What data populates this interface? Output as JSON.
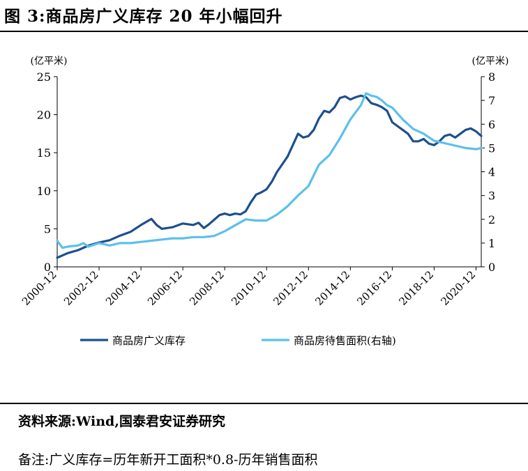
{
  "figure": {
    "title": "图 3:商品房广义库存 20 年小幅回升",
    "source": "资料来源:Wind,国泰君安证券研究",
    "note": "备注:广义库存=历年新开工面积*0.8-历年销售面积"
  },
  "chart_data": {
    "type": "line",
    "left_axis": {
      "unit": "(亿平米)",
      "ylim": [
        0,
        25
      ],
      "ticks": [
        "0",
        "5",
        "10",
        "15",
        "20",
        "25"
      ]
    },
    "right_axis": {
      "unit": "(亿平米)",
      "ylim": [
        0,
        8
      ],
      "ticks": [
        "0",
        "1",
        "2",
        "3",
        "4",
        "5",
        "6",
        "7",
        "8"
      ]
    },
    "x_range": [
      "2000-12",
      "2021-03"
    ],
    "x_tick_labels": [
      "2000-12",
      "2002-12",
      "2004-12",
      "2006-12",
      "2008-12",
      "2010-12",
      "2012-12",
      "2014-12",
      "2016-12",
      "2018-12",
      "2020-12"
    ],
    "grid": false,
    "legend_position": "bottom",
    "series": [
      {
        "name": "商品房广义库存",
        "axis": "left",
        "color": "#1c4f8f",
        "points": [
          [
            "2000-12",
            1.2
          ],
          [
            "2001-06",
            1.8
          ],
          [
            "2001-12",
            2.2
          ],
          [
            "2002-06",
            2.8
          ],
          [
            "2002-12",
            3.2
          ],
          [
            "2003-06",
            3.5
          ],
          [
            "2003-12",
            4.1
          ],
          [
            "2004-06",
            4.6
          ],
          [
            "2004-12",
            5.5
          ],
          [
            "2005-06",
            6.3
          ],
          [
            "2005-09",
            5.5
          ],
          [
            "2005-12",
            5.0
          ],
          [
            "2006-06",
            5.2
          ],
          [
            "2006-12",
            5.7
          ],
          [
            "2007-06",
            5.5
          ],
          [
            "2007-09",
            5.8
          ],
          [
            "2007-12",
            5.1
          ],
          [
            "2008-03",
            5.6
          ],
          [
            "2008-06",
            6.2
          ],
          [
            "2008-09",
            6.8
          ],
          [
            "2008-12",
            7.0
          ],
          [
            "2009-03",
            6.8
          ],
          [
            "2009-06",
            7.0
          ],
          [
            "2009-09",
            6.9
          ],
          [
            "2009-12",
            7.3
          ],
          [
            "2010-03",
            8.5
          ],
          [
            "2010-06",
            9.5
          ],
          [
            "2010-09",
            9.8
          ],
          [
            "2010-12",
            10.2
          ],
          [
            "2011-03",
            11.2
          ],
          [
            "2011-06",
            12.5
          ],
          [
            "2011-09",
            13.5
          ],
          [
            "2011-12",
            14.5
          ],
          [
            "2012-03",
            16.0
          ],
          [
            "2012-06",
            17.5
          ],
          [
            "2012-09",
            17.0
          ],
          [
            "2012-12",
            17.2
          ],
          [
            "2013-03",
            18.0
          ],
          [
            "2013-06",
            19.5
          ],
          [
            "2013-09",
            20.5
          ],
          [
            "2013-12",
            20.3
          ],
          [
            "2014-03",
            21.0
          ],
          [
            "2014-06",
            22.2
          ],
          [
            "2014-09",
            22.4
          ],
          [
            "2014-12",
            22.0
          ],
          [
            "2015-03",
            22.3
          ],
          [
            "2015-06",
            22.5
          ],
          [
            "2015-09",
            22.3
          ],
          [
            "2015-12",
            21.5
          ],
          [
            "2016-03",
            21.3
          ],
          [
            "2016-06",
            21.0
          ],
          [
            "2016-09",
            20.5
          ],
          [
            "2016-12",
            19.0
          ],
          [
            "2017-03",
            18.5
          ],
          [
            "2017-06",
            18.0
          ],
          [
            "2017-09",
            17.5
          ],
          [
            "2017-12",
            16.5
          ],
          [
            "2018-03",
            16.5
          ],
          [
            "2018-06",
            16.8
          ],
          [
            "2018-09",
            16.2
          ],
          [
            "2018-12",
            16.0
          ],
          [
            "2019-03",
            16.5
          ],
          [
            "2019-06",
            17.2
          ],
          [
            "2019-09",
            17.4
          ],
          [
            "2019-12",
            17.0
          ],
          [
            "2020-03",
            17.5
          ],
          [
            "2020-06",
            18.0
          ],
          [
            "2020-09",
            18.2
          ],
          [
            "2020-12",
            17.8
          ],
          [
            "2021-03",
            17.2
          ]
        ]
      },
      {
        "name": "商品房待售面积(右轴)",
        "axis": "right",
        "color": "#5bc0eb",
        "points": [
          [
            "2000-12",
            1.1
          ],
          [
            "2001-03",
            0.8
          ],
          [
            "2001-06",
            0.85
          ],
          [
            "2001-12",
            0.9
          ],
          [
            "2002-03",
            1.0
          ],
          [
            "2002-06",
            0.85
          ],
          [
            "2002-12",
            1.0
          ],
          [
            "2003-06",
            0.9
          ],
          [
            "2003-12",
            1.0
          ],
          [
            "2004-06",
            1.0
          ],
          [
            "2004-12",
            1.05
          ],
          [
            "2005-06",
            1.1
          ],
          [
            "2005-12",
            1.15
          ],
          [
            "2006-06",
            1.2
          ],
          [
            "2006-12",
            1.2
          ],
          [
            "2007-06",
            1.25
          ],
          [
            "2007-12",
            1.25
          ],
          [
            "2008-06",
            1.3
          ],
          [
            "2008-12",
            1.5
          ],
          [
            "2009-06",
            1.75
          ],
          [
            "2009-12",
            2.0
          ],
          [
            "2010-06",
            1.95
          ],
          [
            "2010-12",
            1.95
          ],
          [
            "2011-06",
            2.2
          ],
          [
            "2011-12",
            2.55
          ],
          [
            "2012-06",
            3.0
          ],
          [
            "2012-12",
            3.4
          ],
          [
            "2013-06",
            4.3
          ],
          [
            "2013-12",
            4.7
          ],
          [
            "2014-06",
            5.4
          ],
          [
            "2014-12",
            6.2
          ],
          [
            "2015-06",
            6.8
          ],
          [
            "2015-09",
            7.3
          ],
          [
            "2015-12",
            7.2
          ],
          [
            "2016-03",
            7.15
          ],
          [
            "2016-06",
            7.0
          ],
          [
            "2016-09",
            6.8
          ],
          [
            "2016-12",
            6.7
          ],
          [
            "2017-06",
            6.2
          ],
          [
            "2017-12",
            5.8
          ],
          [
            "2018-06",
            5.6
          ],
          [
            "2018-12",
            5.3
          ],
          [
            "2019-06",
            5.2
          ],
          [
            "2019-12",
            5.1
          ],
          [
            "2020-06",
            5.0
          ],
          [
            "2020-12",
            4.95
          ],
          [
            "2021-03",
            5.0
          ]
        ]
      }
    ]
  }
}
